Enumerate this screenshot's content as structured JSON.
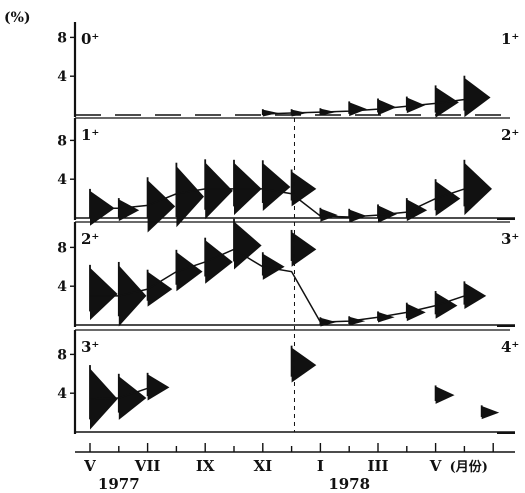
{
  "chart_data": {
    "type": "line",
    "unit_label": "(%)",
    "panel_yticks": [
      "8",
      "4"
    ],
    "ylim": [
      0,
      10
    ],
    "x_tick_labels": [
      "V",
      "VII",
      "IX",
      "XI",
      "I",
      "III",
      "V"
    ],
    "x_unit_label": "(月份)",
    "year_labels": [
      "1977",
      "1978"
    ],
    "x_months": [
      0,
      1,
      2,
      3,
      4,
      5,
      6,
      7,
      8,
      9,
      10,
      11,
      12,
      13,
      14
    ],
    "panels": [
      {
        "left_label": "0⁺",
        "right_label": "1⁺",
        "trend": [
          [
            6,
            0.1
          ],
          [
            7,
            0.2
          ],
          [
            8,
            0.3
          ],
          [
            9,
            0.4
          ],
          [
            10,
            0.6
          ],
          [
            11,
            0.9
          ],
          [
            12,
            1.2
          ],
          [
            13,
            1.6
          ]
        ],
        "kites": [
          {
            "m": 6,
            "v": 0.2,
            "h": 0.8
          },
          {
            "m": 7,
            "v": 0.2,
            "h": 0.8
          },
          {
            "m": 8,
            "v": 0.3,
            "h": 0.8
          },
          {
            "m": 9,
            "v": 0.6,
            "h": 1.6
          },
          {
            "m": 10,
            "v": 0.8,
            "h": 1.8
          },
          {
            "m": 11,
            "v": 1.0,
            "h": 1.8
          },
          {
            "m": 12,
            "v": 1.3,
            "h": 3.5
          },
          {
            "m": 13,
            "v": 1.8,
            "h": 4.5
          }
        ],
        "right_dash": false
      },
      {
        "left_label": "1⁺",
        "right_label": "2⁺",
        "trend": [
          [
            0,
            1.0
          ],
          [
            1,
            1.0
          ],
          [
            2,
            1.3
          ],
          [
            3,
            2.5
          ],
          [
            4,
            3.0
          ],
          [
            5,
            3.0
          ],
          [
            6,
            3.0
          ],
          [
            7,
            2.5
          ],
          [
            8,
            0.2
          ],
          [
            9,
            0.1
          ],
          [
            10,
            0.3
          ],
          [
            11,
            0.6
          ],
          [
            12,
            2.0
          ],
          [
            13,
            3.0
          ]
        ],
        "kites": [
          {
            "m": 0,
            "v": 1.0,
            "h": 4.0
          },
          {
            "m": 1,
            "v": 0.8,
            "h": 2.5
          },
          {
            "m": 2,
            "v": 1.2,
            "h": 6.0
          },
          {
            "m": 3,
            "v": 2.2,
            "h": 7.0
          },
          {
            "m": 4,
            "v": 2.8,
            "h": 6.5
          },
          {
            "m": 5,
            "v": 3.0,
            "h": 6.0
          },
          {
            "m": 6,
            "v": 3.2,
            "h": 5.5
          },
          {
            "m": 7,
            "v": 3.0,
            "h": 4.0
          },
          {
            "m": 8,
            "v": 0.3,
            "h": 1.5
          },
          {
            "m": 9,
            "v": 0.2,
            "h": 1.5
          },
          {
            "m": 10,
            "v": 0.4,
            "h": 2.0
          },
          {
            "m": 11,
            "v": 0.8,
            "h": 2.5
          },
          {
            "m": 12,
            "v": 2.0,
            "h": 4.0
          },
          {
            "m": 13,
            "v": 3.0,
            "h": 6.0
          }
        ],
        "right_dash": true
      },
      {
        "left_label": "2⁺",
        "right_label": "3⁺",
        "trend": [
          [
            0,
            3.0
          ],
          [
            1,
            3.0
          ],
          [
            2,
            3.7
          ],
          [
            3,
            5.5
          ],
          [
            4,
            6.5
          ],
          [
            5,
            7.8
          ],
          [
            6,
            6.0
          ],
          [
            7,
            5.5
          ],
          [
            8,
            0.3
          ],
          [
            9,
            0.4
          ],
          [
            10,
            0.8
          ],
          [
            11,
            1.3
          ],
          [
            12,
            2.0
          ],
          [
            13,
            3.0
          ]
        ],
        "kites": [
          {
            "m": 0,
            "v": 3.2,
            "h": 6.0
          },
          {
            "m": 1,
            "v": 3.0,
            "h": 7.0
          },
          {
            "m": 2,
            "v": 3.7,
            "h": 4.0
          },
          {
            "m": 3,
            "v": 5.5,
            "h": 4.5
          },
          {
            "m": 4,
            "v": 6.5,
            "h": 5.0
          },
          {
            "m": 5,
            "v": 8.2,
            "h": 5.5
          },
          {
            "m": 6,
            "v": 6.0,
            "h": 3.0
          },
          {
            "m": 7,
            "v": 7.8,
            "h": 4.0
          },
          {
            "m": 8,
            "v": 0.3,
            "h": 1.0
          },
          {
            "m": 9,
            "v": 0.4,
            "h": 1.0
          },
          {
            "m": 10,
            "v": 0.8,
            "h": 1.2
          },
          {
            "m": 11,
            "v": 1.3,
            "h": 2.0
          },
          {
            "m": 12,
            "v": 2.0,
            "h": 3.0
          },
          {
            "m": 13,
            "v": 3.0,
            "h": 3.0
          }
        ],
        "right_dash": true
      },
      {
        "left_label": "3⁺",
        "right_label": "4⁺",
        "trend": [
          [
            0,
            3.4
          ],
          [
            1,
            3.5
          ],
          [
            2,
            4.5
          ]
        ],
        "kites": [
          {
            "m": 0,
            "v": 3.4,
            "h": 7.0
          },
          {
            "m": 1,
            "v": 3.5,
            "h": 5.0
          },
          {
            "m": 2,
            "v": 4.6,
            "h": 3.0
          },
          {
            "m": 7,
            "v": 6.9,
            "h": 4.0
          },
          {
            "m": 12,
            "v": 3.8,
            "h": 2.0
          },
          {
            "m": 13.6,
            "v": 2.0,
            "h": 1.5
          }
        ],
        "right_dash": true
      }
    ]
  }
}
